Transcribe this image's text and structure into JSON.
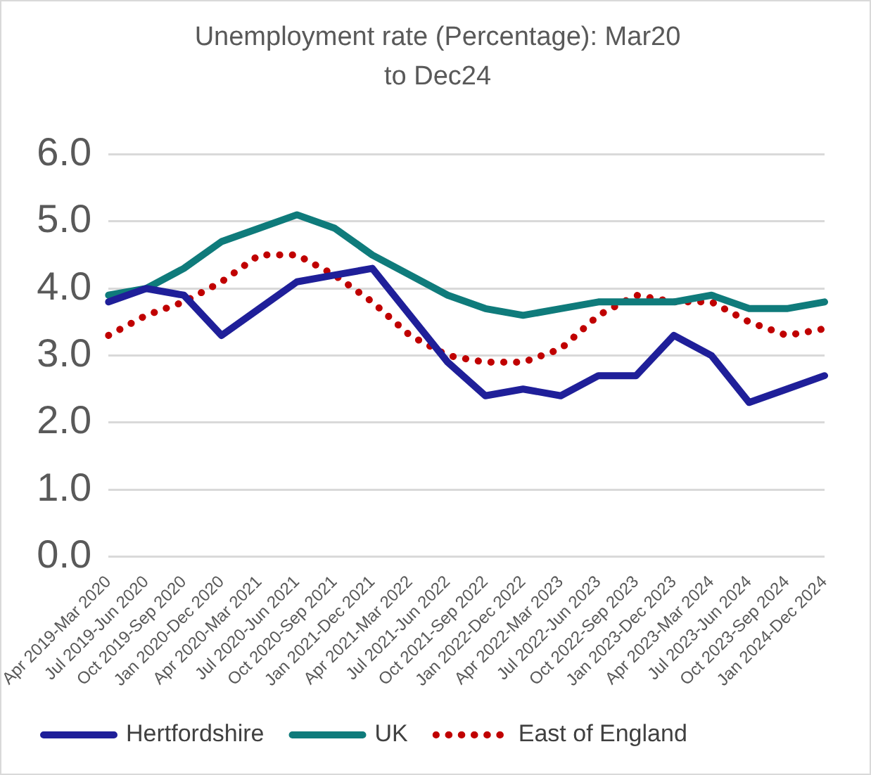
{
  "chart_data": {
    "type": "line",
    "title": "Unemployment rate (Percentage): Mar20 to Dec24",
    "categories": [
      "Apr 2019-Mar 2020",
      "Jul 2019-Jun 2020",
      "Oct 2019-Sep 2020",
      "Jan 2020-Dec 2020",
      "Apr 2020-Mar 2021",
      "Jul 2020-Jun 2021",
      "Oct 2020-Sep 2021",
      "Jan 2021-Dec 2021",
      "Apr 2021-Mar 2022",
      "Jul 2021-Jun 2022",
      "Oct 2021-Sep 2022",
      "Jan 2022-Dec 2022",
      "Apr 2022-Mar 2023",
      "Jul 2022-Jun 2023",
      "Oct 2022-Sep 2023",
      "Jan 2023-Dec 2023",
      "Apr 2023-Mar 2024",
      "Jul 2023-Jun 2024",
      "Oct 2023-Sep 2024",
      "Jan 2024-Dec 2024"
    ],
    "series": [
      {
        "name": "Hertfordshire",
        "color": "#1f1f99",
        "line_style": "solid",
        "values": [
          3.8,
          4.0,
          3.9,
          3.3,
          3.7,
          4.1,
          4.2,
          4.3,
          3.6,
          2.9,
          2.4,
          2.5,
          2.4,
          2.7,
          2.7,
          3.3,
          3.0,
          2.3,
          2.5,
          2.7
        ]
      },
      {
        "name": "UK",
        "color": "#0f7b7b",
        "line_style": "solid",
        "values": [
          3.9,
          4.0,
          4.3,
          4.7,
          4.9,
          5.1,
          4.9,
          4.5,
          4.2,
          3.9,
          3.7,
          3.6,
          3.7,
          3.8,
          3.8,
          3.8,
          3.9,
          3.7,
          3.7,
          3.8
        ]
      },
      {
        "name": "East of England",
        "color": "#c00000",
        "line_style": "dotted",
        "values": [
          3.3,
          3.6,
          3.8,
          4.1,
          4.5,
          4.5,
          4.2,
          3.8,
          3.3,
          3.0,
          2.9,
          2.9,
          3.1,
          3.6,
          3.9,
          3.8,
          3.8,
          3.5,
          3.3,
          3.4
        ]
      }
    ],
    "ylim": [
      0,
      6
    ],
    "yticks": [
      {
        "value": 0,
        "label": "0.0"
      },
      {
        "value": 1,
        "label": "1.0"
      },
      {
        "value": 2,
        "label": "2.0"
      },
      {
        "value": 3,
        "label": "3.0"
      },
      {
        "value": 4,
        "label": "4.0"
      },
      {
        "value": 5,
        "label": "5.0"
      },
      {
        "value": 6,
        "label": "6.0"
      }
    ],
    "grid": "y",
    "legend": "bottom",
    "marker": "none"
  }
}
